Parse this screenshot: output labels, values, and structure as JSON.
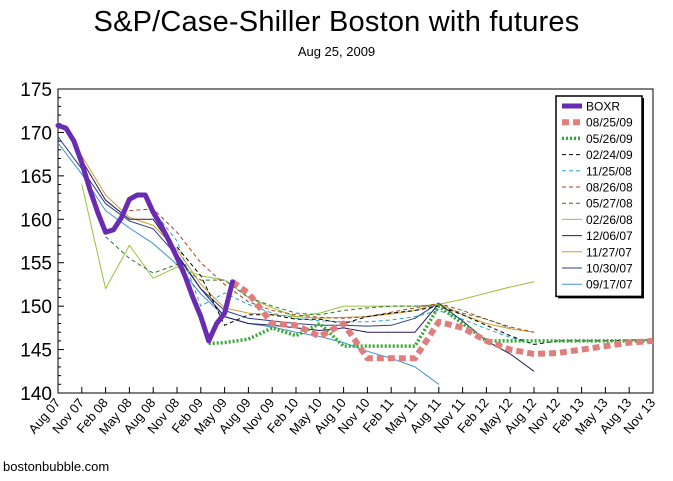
{
  "chart_data": {
    "type": "line",
    "title": "S&P/Case-Shiller Boston with futures",
    "subtitle": "Aug 25, 2009",
    "source": "bostonbubble.com",
    "xlabel": "",
    "ylabel": "",
    "x_ticks": [
      "Aug 07",
      "Nov 07",
      "Feb 08",
      "May 08",
      "Aug 08",
      "Nov 08",
      "Feb 09",
      "May 09",
      "Aug 09",
      "Nov 09",
      "Feb 10",
      "May 10",
      "Aug 10",
      "Nov 10",
      "Feb 11",
      "May 11",
      "Aug 11",
      "Nov 11",
      "Feb 12",
      "May 12",
      "Aug 12",
      "Nov 12",
      "Feb 13",
      "May 13",
      "Aug 13",
      "Nov 13"
    ],
    "y_ticks": [
      140,
      145,
      150,
      155,
      160,
      165,
      170,
      175
    ],
    "ylim": [
      140,
      175
    ],
    "grid": false,
    "legend_position": "top-right",
    "series": [
      {
        "name": "BOXR",
        "color": "#6a2bb3",
        "style": "solid-thick",
        "points": [
          [
            "Aug 07",
            170.8
          ],
          [
            "Sep 07",
            170.5
          ],
          [
            "Oct 07",
            169
          ],
          [
            "Nov 07",
            166.5
          ],
          [
            "Dec 07",
            163.5
          ],
          [
            "Jan 08",
            160.8
          ],
          [
            "Feb 08",
            158.5
          ],
          [
            "Mar 08",
            158.8
          ],
          [
            "Apr 08",
            160.2
          ],
          [
            "May 08",
            162.3
          ],
          [
            "Jun 08",
            162.8
          ],
          [
            "Jul 08",
            162.8
          ],
          [
            "Aug 08",
            160.8
          ],
          [
            "Sep 08",
            159.3
          ],
          [
            "Oct 08",
            157.5
          ],
          [
            "Nov 08",
            155.6
          ],
          [
            "Dec 08",
            153.5
          ],
          [
            "Jan 09",
            151
          ],
          [
            "Feb 09",
            148.8
          ],
          [
            "Mar 09",
            146
          ],
          [
            "Apr 09",
            148
          ],
          [
            "May 09",
            149.2
          ],
          [
            "Jun 09",
            152.8
          ]
        ]
      },
      {
        "name": "08/25/09",
        "color": "#e07d7d",
        "style": "dashed-thick",
        "points": [
          [
            "Jun 09",
            152.8
          ],
          [
            "Aug 09",
            151.5
          ],
          [
            "Nov 09",
            148
          ],
          [
            "Feb 10",
            147.8
          ],
          [
            "May 10",
            146.5
          ],
          [
            "Aug 10",
            148
          ],
          [
            "Nov 10",
            144
          ],
          [
            "Feb 11",
            144
          ],
          [
            "May 11",
            144
          ],
          [
            "Aug 11",
            148.2
          ],
          [
            "Nov 11",
            147.5
          ],
          [
            "Feb 12",
            146
          ],
          [
            "May 12",
            145
          ],
          [
            "Aug 12",
            144.5
          ],
          [
            "Nov 12",
            144.6
          ],
          [
            "Feb 13",
            145
          ],
          [
            "May 13",
            145.4
          ],
          [
            "Aug 13",
            145.8
          ],
          [
            "Nov 13",
            146
          ]
        ]
      },
      {
        "name": "05/26/09",
        "color": "#33aa33",
        "style": "dotted-thick",
        "points": [
          [
            "Mar 09",
            145.7
          ],
          [
            "May 09",
            145.8
          ],
          [
            "Aug 09",
            146.2
          ],
          [
            "Nov 09",
            147.5
          ],
          [
            "Feb 10",
            146.6
          ],
          [
            "May 10",
            148
          ],
          [
            "Aug 10",
            145.4
          ],
          [
            "Nov 10",
            145.4
          ],
          [
            "Feb 11",
            145.4
          ],
          [
            "May 11",
            145.4
          ],
          [
            "Aug 11",
            150
          ],
          [
            "Nov 11",
            148
          ],
          [
            "Feb 12",
            146
          ],
          [
            "May 12",
            146
          ],
          [
            "Aug 12",
            146
          ],
          [
            "Nov 12",
            146
          ],
          [
            "Feb 13",
            146
          ],
          [
            "May 13",
            146
          ],
          [
            "Aug 13",
            146
          ],
          [
            "Nov 13",
            146
          ]
        ]
      },
      {
        "name": "02/24/09",
        "color": "#000000",
        "style": "dashed-thin",
        "points": [
          [
            "Nov 08",
            156.8
          ],
          [
            "Feb 09",
            153.5
          ],
          [
            "May 09",
            147.8
          ],
          [
            "Aug 09",
            149
          ],
          [
            "Nov 09",
            149
          ],
          [
            "Feb 10",
            148.5
          ],
          [
            "May 10",
            148.5
          ],
          [
            "Aug 10",
            148
          ],
          [
            "Nov 10",
            148.8
          ],
          [
            "Feb 11",
            149.2
          ],
          [
            "May 11",
            149.5
          ],
          [
            "Aug 11",
            150
          ],
          [
            "Nov 11",
            149
          ],
          [
            "Feb 12",
            147.8
          ],
          [
            "May 12",
            146.6
          ],
          [
            "Aug 12",
            145.6
          ],
          [
            "Nov 12",
            146
          ],
          [
            "Feb 13",
            146
          ],
          [
            "May 13",
            146
          ],
          [
            "Aug 13",
            146.1
          ],
          [
            "Nov 13",
            146.1
          ]
        ]
      },
      {
        "name": "11/25/08",
        "color": "#2aa1c9",
        "style": "dashed-thin",
        "points": [
          [
            "Aug 08",
            161
          ],
          [
            "Nov 08",
            157.5
          ],
          [
            "Feb 09",
            150
          ],
          [
            "May 09",
            151.5
          ],
          [
            "Aug 09",
            150.2
          ],
          [
            "Nov 09",
            149.2
          ],
          [
            "Feb 10",
            148.6
          ],
          [
            "May 10",
            148.3
          ],
          [
            "Aug 10",
            148.2
          ],
          [
            "Nov 10",
            148.2
          ],
          [
            "Feb 11",
            148.4
          ],
          [
            "May 11",
            148.8
          ],
          [
            "Aug 11",
            149.5
          ],
          [
            "Nov 11",
            148.5
          ],
          [
            "Feb 12",
            147.4
          ],
          [
            "May 12",
            146.4
          ],
          [
            "Aug 12",
            145.6
          ]
        ]
      },
      {
        "name": "08/26/08",
        "color": "#a0452a",
        "style": "dashed-thin",
        "points": [
          [
            "May 08",
            161
          ],
          [
            "Aug 08",
            161.2
          ],
          [
            "Nov 08",
            158.5
          ],
          [
            "Feb 09",
            155
          ],
          [
            "May 09",
            152.5
          ],
          [
            "Aug 09",
            150.5
          ],
          [
            "Nov 09",
            149.5
          ],
          [
            "Feb 10",
            149
          ],
          [
            "May 10",
            148.7
          ],
          [
            "Aug 10",
            148.6
          ],
          [
            "Nov 10",
            148.8
          ],
          [
            "Feb 11",
            149.3
          ],
          [
            "May 11",
            149.8
          ],
          [
            "Aug 11",
            150.3
          ],
          [
            "Nov 11",
            149.5
          ],
          [
            "Feb 12",
            148.5
          ],
          [
            "May 12",
            147.6
          ],
          [
            "Aug 12",
            147
          ]
        ]
      },
      {
        "name": "05/27/08",
        "color": "#2d7a2d",
        "style": "dashed-thin",
        "points": [
          [
            "Feb 08",
            158
          ],
          [
            "May 08",
            155.5
          ],
          [
            "Aug 08",
            153.8
          ],
          [
            "Nov 08",
            154.8
          ],
          [
            "Feb 09",
            153
          ],
          [
            "May 09",
            153
          ],
          [
            "Aug 09",
            151
          ],
          [
            "Nov 09",
            150
          ],
          [
            "Feb 10",
            149.2
          ],
          [
            "May 10",
            149
          ],
          [
            "Aug 10",
            149.5
          ],
          [
            "Nov 10",
            149.8
          ],
          [
            "Feb 11",
            150
          ],
          [
            "May 11",
            150
          ],
          [
            "Aug 11",
            150
          ],
          [
            "Nov 11",
            149.2
          ],
          [
            "Feb 12",
            148.5
          ],
          [
            "May 12",
            147.5
          ]
        ]
      },
      {
        "name": "02/26/08",
        "color": "#9ac23c",
        "style": "solid-thin",
        "points": [
          [
            "Nov 07",
            164
          ],
          [
            "Feb 08",
            152
          ],
          [
            "May 08",
            157
          ],
          [
            "Aug 08",
            153.2
          ],
          [
            "Nov 08",
            154.5
          ],
          [
            "Feb 09",
            153.5
          ],
          [
            "May 09",
            153
          ],
          [
            "Aug 09",
            151
          ],
          [
            "Nov 09",
            149.8
          ],
          [
            "Feb 10",
            148.8
          ],
          [
            "May 10",
            149.2
          ],
          [
            "Aug 10",
            150
          ],
          [
            "Nov 10",
            150
          ],
          [
            "Feb 11",
            150
          ],
          [
            "May 11",
            150
          ],
          [
            "Aug 11",
            150.2
          ],
          [
            "Nov 11",
            150.8
          ],
          [
            "Feb 12",
            151.5
          ],
          [
            "May 12",
            152.2
          ],
          [
            "Aug 12",
            152.8
          ]
        ]
      },
      {
        "name": "12/06/07",
        "color": "#2a1a5e",
        "style": "solid-thin",
        "points": [
          [
            "Nov 07",
            166.8
          ],
          [
            "Feb 08",
            162.2
          ],
          [
            "May 08",
            160
          ],
          [
            "Aug 08",
            160
          ],
          [
            "Nov 08",
            156
          ],
          [
            "Feb 09",
            152
          ],
          [
            "May 09",
            148.8
          ],
          [
            "Aug 09",
            148
          ],
          [
            "Nov 09",
            147.8
          ],
          [
            "Feb 10",
            147.5
          ],
          [
            "May 10",
            147.2
          ],
          [
            "Aug 10",
            147.5
          ],
          [
            "Nov 10",
            147
          ],
          [
            "Feb 11",
            147
          ],
          [
            "May 11",
            147
          ],
          [
            "Aug 11",
            150.3
          ],
          [
            "Nov 11",
            148.3
          ],
          [
            "Feb 12",
            146
          ],
          [
            "May 12",
            144.5
          ],
          [
            "Aug 12",
            142.5
          ]
        ]
      },
      {
        "name": "11/27/07",
        "color": "#c9a227",
        "style": "solid-thin",
        "points": [
          [
            "Nov 07",
            167.3
          ],
          [
            "Feb 08",
            162.8
          ],
          [
            "May 08",
            160.2
          ],
          [
            "Aug 08",
            159.3
          ],
          [
            "Nov 08",
            156.5
          ],
          [
            "Feb 09",
            152.5
          ],
          [
            "May 09",
            149.8
          ],
          [
            "Aug 09",
            149.2
          ],
          [
            "Nov 09",
            149
          ],
          [
            "Feb 10",
            148.8
          ],
          [
            "May 10",
            148.6
          ],
          [
            "Aug 10",
            148.7
          ],
          [
            "Nov 10",
            148.8
          ],
          [
            "Feb 11",
            149.1
          ],
          [
            "May 11",
            149.5
          ],
          [
            "Aug 11",
            150.3
          ],
          [
            "Nov 11",
            149
          ],
          [
            "Feb 12",
            148
          ],
          [
            "May 12",
            147.4
          ],
          [
            "Aug 12",
            147
          ]
        ]
      },
      {
        "name": "10/30/07",
        "color": "#2a3d8f",
        "style": "solid-thin",
        "points": [
          [
            "Aug 07",
            169.5
          ],
          [
            "Nov 07",
            165.8
          ],
          [
            "Feb 08",
            161.8
          ],
          [
            "May 08",
            159.8
          ],
          [
            "Aug 08",
            158.9
          ],
          [
            "Nov 08",
            155.8
          ],
          [
            "Feb 09",
            152
          ],
          [
            "May 09",
            149.5
          ],
          [
            "Aug 09",
            148.6
          ],
          [
            "Nov 09",
            148.3
          ],
          [
            "Feb 10",
            148
          ],
          [
            "May 10",
            147.8
          ],
          [
            "Aug 10",
            147.8
          ],
          [
            "Nov 10",
            147.7
          ],
          [
            "Feb 11",
            147.8
          ],
          [
            "May 11",
            148.6
          ],
          [
            "Aug 11",
            150.4
          ]
        ]
      },
      {
        "name": "09/17/07",
        "color": "#3f8fd9",
        "style": "solid-thin",
        "points": [
          [
            "Aug 07",
            168.8
          ],
          [
            "Nov 07",
            165.2
          ],
          [
            "Feb 08",
            161
          ],
          [
            "May 08",
            159
          ],
          [
            "Aug 08",
            157.2
          ],
          [
            "Nov 08",
            154.8
          ],
          [
            "Feb 09",
            151.4
          ],
          [
            "May 09",
            148.8
          ],
          [
            "Aug 09",
            148
          ],
          [
            "Nov 09",
            147.6
          ],
          [
            "Feb 10",
            147
          ],
          [
            "May 10",
            146.5
          ],
          [
            "Aug 10",
            145.8
          ],
          [
            "Nov 10",
            144.8
          ],
          [
            "Feb 11",
            144
          ],
          [
            "May 11",
            143
          ],
          [
            "Aug 11",
            141
          ]
        ]
      }
    ]
  }
}
